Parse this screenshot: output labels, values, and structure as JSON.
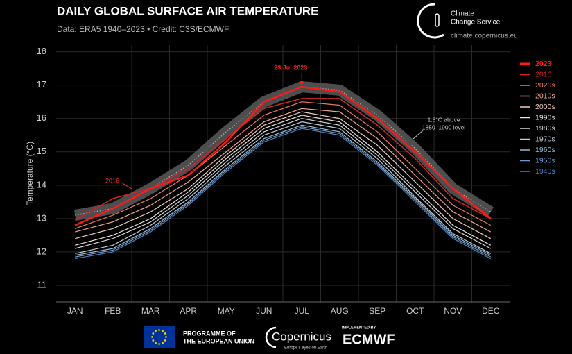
{
  "header": {
    "logo_line1": "Climate",
    "logo_line2": "Change Service",
    "url": "climate.copernicus.eu"
  },
  "chart_data": {
    "type": "line",
    "title": "DAILY GLOBAL SURFACE AIR TEMPERATURE",
    "subtitle": "Data: ERA5 1940–2023 • Credit: C3S/ECMWF",
    "y_label": "Temperature (°C)",
    "categories": [
      "JAN",
      "FEB",
      "MAR",
      "APR",
      "MAY",
      "JUN",
      "JUL",
      "AUG",
      "SEP",
      "OCT",
      "NOV",
      "DEC"
    ],
    "ylim": [
      10.5,
      18.2
    ],
    "yticks": [
      11,
      12,
      13,
      14,
      15,
      16,
      17,
      18
    ],
    "grid": true,
    "legend": "right",
    "series": [
      {
        "name": "2023",
        "color": "#ff1a1a",
        "values": [
          12.8,
          13.3,
          13.9,
          14.3,
          15.3,
          16.5,
          16.95,
          16.8,
          16.0,
          15.0,
          13.9,
          13.0
        ]
      },
      {
        "name": "2016",
        "color": "#d2232a",
        "values": [
          12.95,
          13.6,
          13.9,
          14.5,
          15.4,
          16.3,
          16.6,
          16.6,
          15.8,
          14.8,
          13.6,
          13.0
        ]
      },
      {
        "name": "2020s",
        "color": "#ea7a62",
        "values": [
          12.7,
          13.1,
          13.6,
          14.3,
          15.2,
          16.1,
          16.5,
          16.4,
          15.6,
          14.5,
          13.4,
          12.8
        ]
      },
      {
        "name": "2010s",
        "color": "#eea58f",
        "values": [
          12.6,
          12.9,
          13.4,
          14.1,
          15.0,
          15.9,
          16.3,
          16.2,
          15.4,
          14.3,
          13.2,
          12.6
        ]
      },
      {
        "name": "2000s",
        "color": "#f1cdbf",
        "values": [
          12.4,
          12.7,
          13.2,
          13.9,
          14.9,
          15.8,
          16.2,
          16.0,
          15.2,
          14.1,
          13.0,
          12.4
        ]
      },
      {
        "name": "1990s",
        "color": "#ebe3df",
        "values": [
          12.2,
          12.5,
          13.0,
          13.8,
          14.8,
          15.7,
          16.1,
          15.9,
          15.0,
          13.9,
          12.8,
          12.2
        ]
      },
      {
        "name": "1980s",
        "color": "#d6d6d6",
        "values": [
          12.1,
          12.4,
          12.9,
          13.7,
          14.7,
          15.6,
          16.0,
          15.8,
          14.9,
          13.8,
          12.7,
          12.1
        ]
      },
      {
        "name": "1970s",
        "color": "#c0ccd8",
        "values": [
          11.95,
          12.2,
          12.8,
          13.6,
          14.6,
          15.5,
          15.9,
          15.7,
          14.8,
          13.65,
          12.55,
          11.95
        ]
      },
      {
        "name": "1960s",
        "color": "#9abbd8",
        "values": [
          11.9,
          12.1,
          12.7,
          13.5,
          14.5,
          15.4,
          15.8,
          15.6,
          14.7,
          13.6,
          12.5,
          11.9
        ]
      },
      {
        "name": "1950s",
        "color": "#6b9ccb",
        "values": [
          11.85,
          12.05,
          12.65,
          13.45,
          14.45,
          15.35,
          15.75,
          15.55,
          14.65,
          13.55,
          12.45,
          11.85
        ]
      },
      {
        "name": "1940s",
        "color": "#4a80ba",
        "values": [
          11.8,
          12.0,
          12.6,
          13.4,
          14.4,
          15.3,
          15.7,
          15.5,
          14.6,
          13.5,
          12.4,
          11.8
        ]
      }
    ],
    "threshold": {
      "label_line1": "1.5°C above",
      "label_line2": "1850–1900 level",
      "values": [
        13.1,
        13.3,
        13.9,
        14.6,
        15.6,
        16.5,
        16.95,
        16.85,
        16.1,
        15.1,
        13.9,
        13.2
      ]
    },
    "peak": {
      "label": "23 Jul 2023",
      "value": 17.08
    },
    "annotation_2016": "2016"
  },
  "footer": {
    "eu_line1": "PROGRAMME OF",
    "eu_line2": "THE EUROPEAN UNION",
    "copernicus": "Copernicus",
    "copernicus_tag": "Europe's eyes on Earth",
    "implemented": "IMPLEMENTED BY",
    "ecmwf": "ECMWF"
  }
}
